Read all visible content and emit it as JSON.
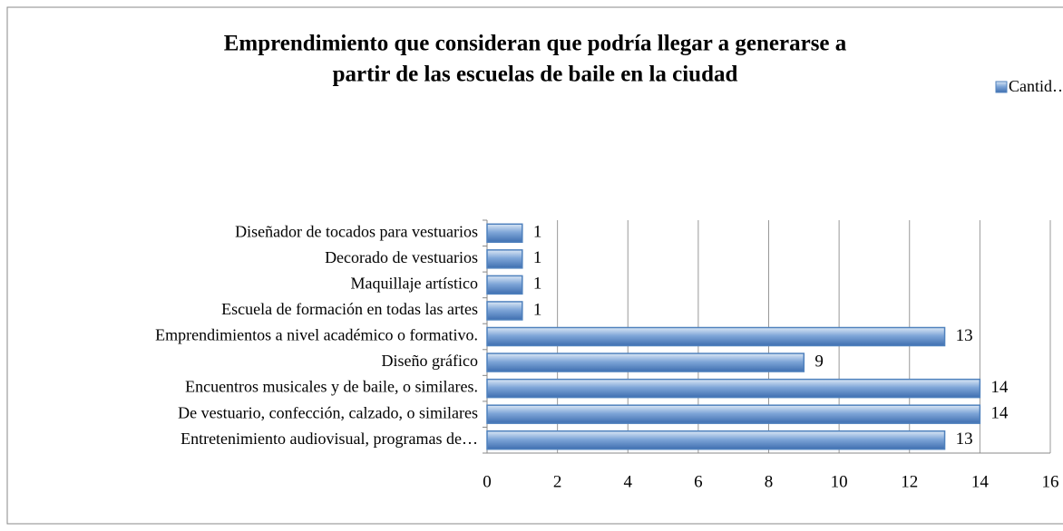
{
  "chart_data": {
    "type": "barh",
    "title": [
      "Emprendimiento que consideran que podría llegar a generarse a",
      "partir de las escuelas de baile en la ciudad"
    ],
    "categories": [
      "Diseñador de tocados para vestuarios",
      "Decorado de vestuarios",
      "Maquillaje artístico",
      "Escuela de formación en todas las artes",
      "Emprendimientos a nivel académico o formativo.",
      "Diseño gráfico",
      "Encuentros musicales y de baile, o similares.",
      "De vestuario, confección, calzado, o similares",
      "Entretenimiento audiovisual, programas de…"
    ],
    "series": [
      {
        "name": "Cantid…",
        "color": "#4f81bd",
        "values": [
          1,
          1,
          1,
          1,
          13,
          9,
          14,
          14,
          13
        ]
      }
    ],
    "xlim": [
      0,
      16
    ],
    "xticks": [
      0,
      2,
      4,
      6,
      8,
      10,
      12,
      14,
      16
    ],
    "grid": true,
    "legend": "top-right"
  }
}
